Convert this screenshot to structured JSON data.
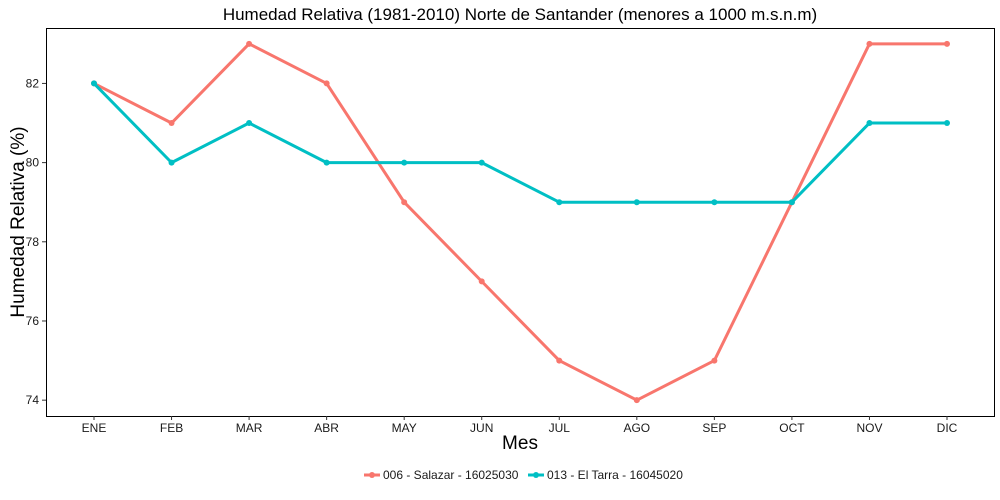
{
  "chart_data": {
    "type": "line",
    "title": "Humedad Relativa (1981-2010) Norte de Santander (menores a 1000 m.s.n.m)",
    "xlabel": "Mes",
    "ylabel": "Humedad Relativa (%)",
    "categories": [
      "ENE",
      "FEB",
      "MAR",
      "ABR",
      "MAY",
      "JUN",
      "JUL",
      "AGO",
      "SEP",
      "OCT",
      "NOV",
      "DIC"
    ],
    "yticks": [
      74,
      76,
      78,
      80,
      82
    ],
    "ylim": [
      73.6,
      83.4
    ],
    "grid": false,
    "legend_position": "bottom",
    "series": [
      {
        "name": "006 - Salazar - 16025030",
        "color": "#F8766D",
        "values": [
          82,
          81,
          83,
          82,
          79,
          77,
          75,
          74,
          75,
          79,
          83,
          83
        ]
      },
      {
        "name": "013 - El Tarra - 16045020",
        "color": "#00BFC4",
        "values": [
          82,
          80,
          81,
          80,
          80,
          80,
          79,
          79,
          79,
          79,
          81,
          81
        ]
      }
    ]
  }
}
